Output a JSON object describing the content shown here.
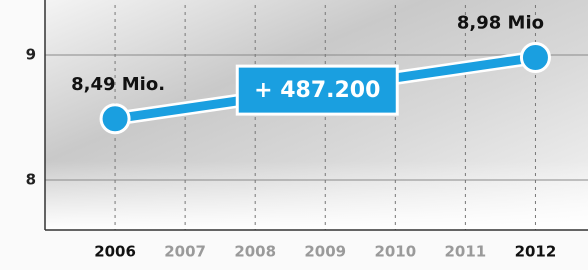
{
  "chart_data": {
    "type": "line",
    "x": [
      2006,
      2012
    ],
    "series": [
      {
        "name": null,
        "color": "#1a9fe0",
        "values": [
          8.49,
          8.98
        ],
        "value_labels": [
          "8,49 Mio.",
          "8,98 Mio"
        ]
      }
    ],
    "xlim": [
      2005,
      2012.75
    ],
    "xticks": [
      2006,
      2007,
      2008,
      2009,
      2010,
      2011,
      2012
    ],
    "ylim": [
      7.6,
      9.4
    ],
    "yticks": [
      8,
      9
    ],
    "annotation": "+ 487.200",
    "grid": true
  }
}
